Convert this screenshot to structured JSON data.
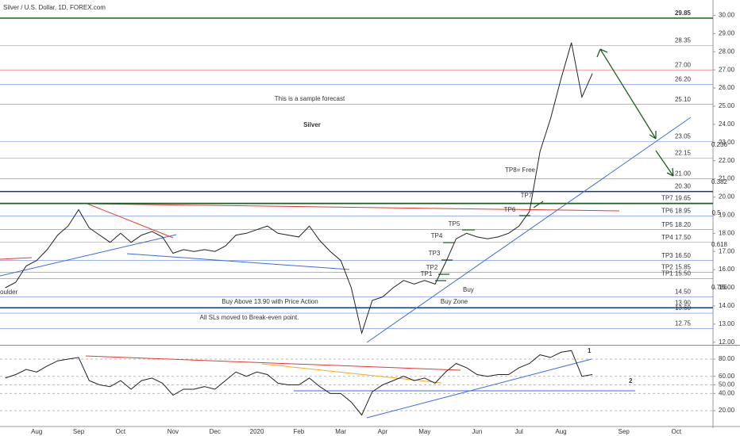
{
  "chart_data": [
    {
      "type": "line",
      "title": "Silver / U.S. Dollar, 1D, FOREX.com",
      "color": "#222222",
      "categories": [
        null,
        null,
        null,
        "Aug",
        null,
        null,
        null,
        "Sep",
        null,
        null,
        null,
        "Oct",
        null,
        null,
        null,
        null,
        "Nov",
        null,
        null,
        null,
        "Dec",
        null,
        null,
        null,
        "2020",
        null,
        null,
        null,
        "Feb",
        null,
        null,
        null,
        "Mar",
        null,
        null,
        null,
        "Apr",
        null,
        null,
        null,
        "May",
        null,
        null,
        null,
        null,
        "Jun",
        null,
        null,
        null,
        "Jul",
        null,
        null,
        null,
        "Aug",
        null,
        null,
        null,
        null,
        null,
        "Sep",
        null,
        null,
        null,
        null,
        "Oct",
        null,
        null,
        null
      ],
      "values": [
        15.0,
        15.3,
        16.2,
        16.5,
        17.1,
        17.9,
        18.4,
        19.3,
        18.3,
        17.9,
        17.5,
        18.0,
        17.5,
        17.9,
        18.1,
        17.8,
        16.9,
        17.1,
        17.0,
        17.1,
        17.0,
        17.3,
        17.9,
        18.0,
        18.2,
        18.4,
        18.0,
        17.9,
        17.8,
        18.4,
        17.6,
        17.0,
        16.5,
        15.0,
        12.5,
        14.3,
        14.5,
        15.0,
        15.4,
        15.2,
        15.4,
        15.2,
        16.4,
        17.7,
        18.0,
        17.8,
        17.7,
        17.8,
        18.0,
        18.4,
        19.2,
        22.5,
        24.3,
        26.5,
        28.5,
        25.5,
        26.8,
        null,
        null,
        null,
        null,
        null,
        null,
        null,
        null,
        null,
        null,
        null
      ],
      "ylim": [
        11.9,
        30.5
      ],
      "yticks": [
        {
          "value": 12,
          "label": "12.00"
        },
        {
          "value": 13,
          "label": "13.00"
        },
        {
          "value": 14,
          "label": "14.00"
        },
        {
          "value": 15,
          "label": "15.00"
        },
        {
          "value": 16,
          "label": "16.00"
        },
        {
          "value": 17,
          "label": "17.00"
        },
        {
          "value": 18,
          "label": "18.00"
        },
        {
          "value": 19,
          "label": "19.00"
        },
        {
          "value": 20,
          "label": "20.00"
        },
        {
          "value": 21,
          "label": "21.00"
        },
        {
          "value": 22,
          "label": "22.00"
        },
        {
          "value": 23,
          "label": "23.00"
        },
        {
          "value": 24,
          "label": "24.00"
        },
        {
          "value": 25,
          "label": "25.00"
        },
        {
          "value": 26,
          "label": "26.00"
        },
        {
          "value": 27,
          "label": "27.00"
        },
        {
          "value": 28,
          "label": "28.00"
        },
        {
          "value": 29,
          "label": "29.00"
        },
        {
          "value": 30,
          "label": "30.00"
        }
      ],
      "levels": [
        {
          "value": 29.85,
          "label": "29.85",
          "color": "#1b5e20"
        },
        {
          "value": 28.35,
          "label": "28.35",
          "color": "#e53935"
        },
        {
          "value": 27,
          "label": "27.00",
          "color": "#e53935"
        },
        {
          "value": 26.2,
          "label": "26.20",
          "color": "#3f6ad8"
        },
        {
          "value": 25.1,
          "label": "25.10",
          "color": "#3f6ad8"
        },
        {
          "value": 23.05,
          "label": "23.05",
          "color": "#3f6ad8"
        },
        {
          "value": 22.15,
          "label": "22.15",
          "color": "#3f6ad8"
        },
        {
          "value": 21,
          "label": "21.00",
          "color": "#3f6ad8"
        },
        {
          "value": 20.3,
          "label": "20.30",
          "color": "#0d3c8a"
        },
        {
          "value": 19.65,
          "label": "TP7 19.65",
          "color": "#1b5e20"
        },
        {
          "value": 18.95,
          "label": "TP6 18.95",
          "color": "#3f6ad8"
        },
        {
          "value": 18.2,
          "label": "TP5 18.20",
          "color": "#3f6ad8"
        },
        {
          "value": 17.5,
          "label": "TP4 17.50",
          "color": "#3f6ad8"
        },
        {
          "value": 16.5,
          "label": "TP3 16.50",
          "color": "#3f6ad8"
        },
        {
          "value": 15.85,
          "label": "TP2 15.85",
          "color": "#3f6ad8"
        },
        {
          "value": 15.5,
          "label": "TP1 15.50",
          "color": "#3f6ad8"
        },
        {
          "value": 14.5,
          "label": "14.50",
          "color": "#3f6ad8"
        },
        {
          "value": 13.9,
          "label": "13.90",
          "color": "#0d3c8a"
        },
        {
          "value": 13.6,
          "label": "13.60",
          "color": "#3f6ad8"
        },
        {
          "value": 12.75,
          "label": "12.75",
          "color": "#3f6ad8"
        }
      ],
      "annotations": [
        "This is a sample forecast",
        "Silver",
        "Buy Above 13.90 with Price Action",
        "All SLs moved to Break-even point.",
        "Buy Zone",
        "Buy",
        "TP1",
        "TP2",
        "TP3",
        "TP4",
        "TP5",
        "TP6",
        "TP7",
        "TP8= Free",
        "oulder",
        "0.236",
        "0.382",
        "0.5",
        "0.618",
        "0.786"
      ]
    },
    {
      "type": "line",
      "color": "#222222",
      "values": [
        58,
        62,
        68,
        65,
        72,
        78,
        80,
        82,
        55,
        50,
        48,
        55,
        45,
        55,
        58,
        52,
        38,
        45,
        45,
        48,
        45,
        55,
        65,
        60,
        65,
        62,
        52,
        50,
        50,
        58,
        48,
        40,
        40,
        30,
        15,
        42,
        50,
        55,
        60,
        55,
        58,
        52,
        65,
        75,
        70,
        62,
        60,
        62,
        62,
        70,
        75,
        85,
        82,
        88,
        90,
        60,
        62,
        null,
        null,
        null,
        null,
        null,
        null,
        null,
        null,
        null,
        null,
        null
      ],
      "ylim": [
        2.5,
        94.8
      ],
      "yticks": [
        {
          "value": 80,
          "label": "80.00"
        },
        {
          "value": 60,
          "label": "60.00"
        },
        {
          "value": 50,
          "label": "50.00"
        },
        {
          "value": 40,
          "label": "40.00"
        },
        {
          "value": 20,
          "label": "20.00"
        }
      ],
      "annotations": [
        "1",
        "2"
      ]
    }
  ]
}
